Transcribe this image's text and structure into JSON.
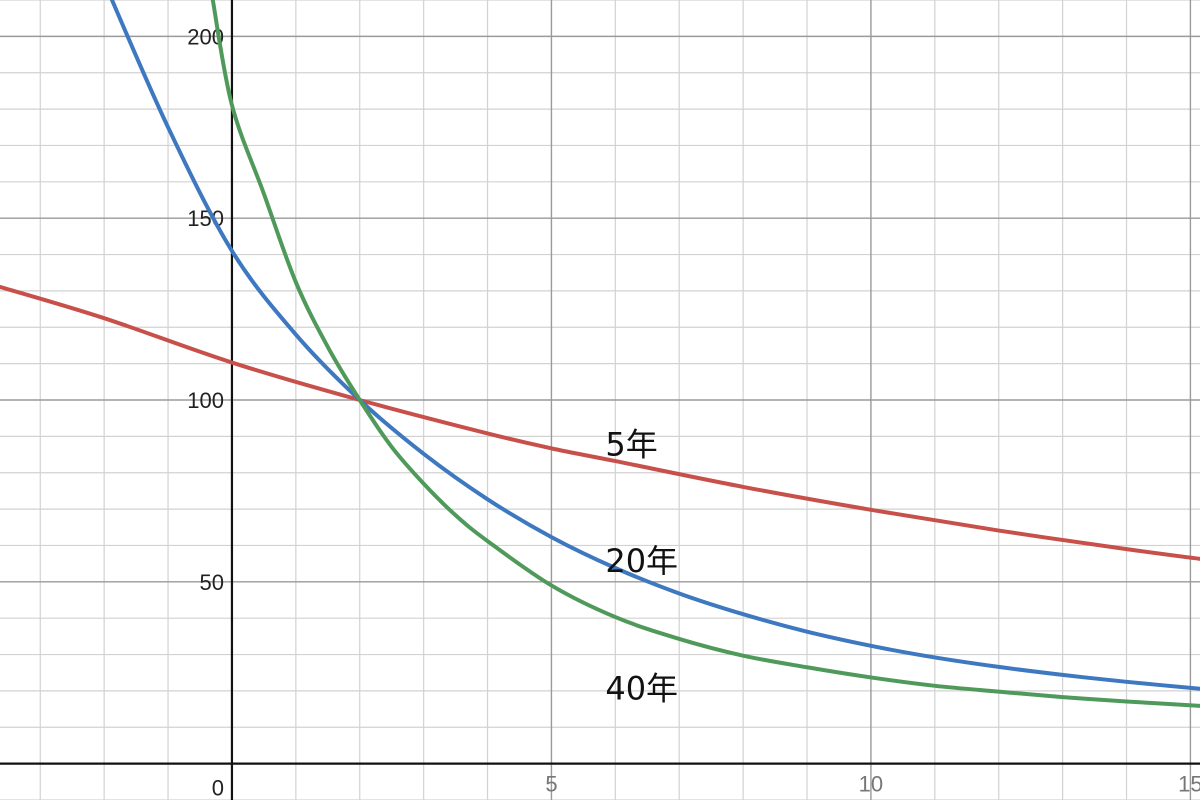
{
  "chart_data": {
    "type": "line",
    "title": "",
    "xlabel": "",
    "ylabel": "",
    "xlim": [
      -3.63,
      15.15
    ],
    "ylim": [
      -10,
      210
    ],
    "grid": true,
    "x_major_ticks": [
      5,
      10,
      15
    ],
    "y_major_ticks": [
      0,
      50,
      100,
      150,
      200
    ],
    "x_tick_labels": [
      "5",
      "10",
      "15"
    ],
    "y_tick_labels": [
      "0",
      "50",
      "100",
      "150",
      "200"
    ],
    "series": [
      {
        "name": "5年",
        "color": "#c8504b",
        "label_at": [
          6,
          88
        ],
        "x": [
          -3.63,
          -2,
          0,
          2,
          4,
          5,
          6,
          8,
          10,
          12,
          14,
          15.15
        ],
        "y": [
          131.1,
          122.5,
          110.3,
          100,
          90.8,
          86.7,
          83.2,
          76.1,
          69.8,
          64.1,
          59.0,
          56.3
        ]
      },
      {
        "name": "20年",
        "color": "#3d78c0",
        "label_at": [
          6,
          56
        ],
        "x": [
          -2,
          -1,
          0,
          1,
          2,
          3,
          4,
          5,
          6,
          7,
          8,
          9,
          10,
          11,
          12,
          13,
          14,
          15.15
        ],
        "y": [
          215,
          175,
          141,
          118,
          100,
          85.2,
          72.7,
          62.3,
          53.8,
          46.8,
          41.1,
          36.3,
          32.4,
          29.2,
          26.6,
          24.4,
          22.5,
          20.6
        ]
      },
      {
        "name": "40年",
        "color": "#4f9a5a",
        "label_at": [
          6,
          21
        ],
        "x": [
          -0.3,
          0,
          0.5,
          1,
          1.5,
          2,
          2.5,
          3,
          3.5,
          4,
          5,
          6,
          7,
          8,
          9,
          10,
          11,
          12,
          13,
          14,
          15.15
        ],
        "y": [
          210,
          181.1,
          156.7,
          132.4,
          114.6,
          100,
          87.1,
          77.0,
          68.3,
          61.2,
          49.0,
          40.3,
          34.3,
          29.7,
          26.5,
          23.7,
          21.4,
          19.8,
          18.3,
          17.1,
          15.9
        ]
      }
    ]
  }
}
